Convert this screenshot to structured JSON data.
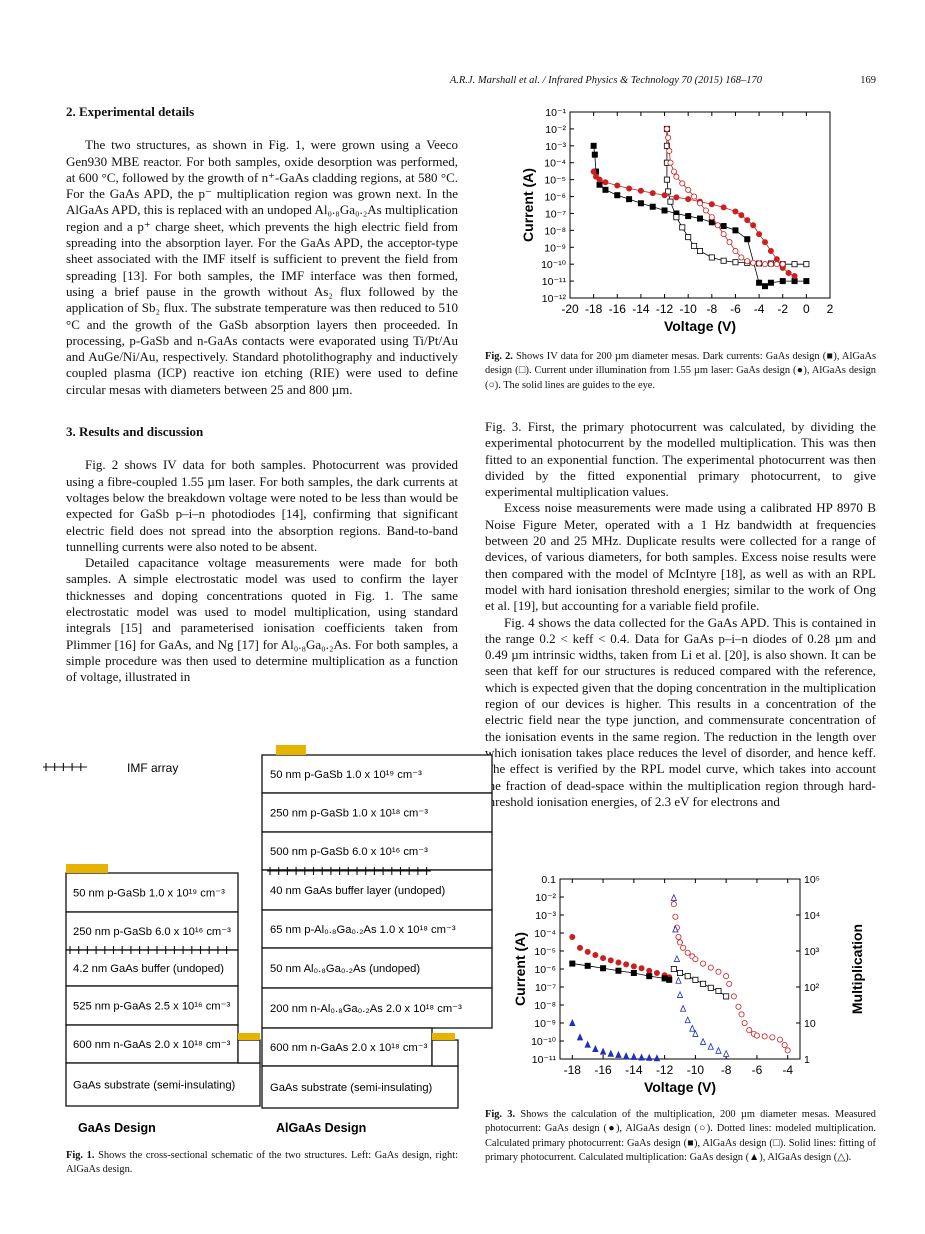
{
  "header": {
    "running": "A.R.J. Marshall et al. / Infrared Physics & Technology 70 (2015) 168–170",
    "page": "169"
  },
  "left_column": {
    "sections": [
      {
        "heading": "2. Experimental details",
        "paragraphs": [
          "The two structures, as shown in Fig. 1, were grown using a Veeco Gen930 MBE reactor. For both samples, oxide desorption was performed, at 600 °C, followed by the growth of n⁺-GaAs cladding regions, at 580 °C. For the GaAs APD, the p⁻ multiplication region was grown next. In the AlGaAs APD, this is replaced with an undoped Al₀.₈Ga₀.₂As multiplication region and a p⁺ charge sheet, which prevents the high electric field from spreading into the absorption layer. For the GaAs APD, the acceptor-type sheet associated with the IMF itself is sufficient to prevent the field from spreading [13]. For both samples, the IMF interface was then formed, using a brief pause in the growth without As₂ flux followed by the application of Sb₂ flux. The substrate temperature was then reduced to 510 °C and the growth of the GaSb absorption layers then proceeded. In processing, p-GaSb and n-GaAs contacts were evaporated using Ti/Pt/Au and AuGe/Ni/Au, respectively. Standard photolithography and inductively coupled plasma (ICP) reactive ion etching (RIE) were used to define circular mesas with diameters between 25 and 800 µm."
        ]
      },
      {
        "heading": "3. Results and discussion",
        "paragraphs": [
          "Fig. 2 shows IV data for both samples. Photocurrent was provided using a fibre-coupled 1.55 µm laser. For both samples, the dark currents at voltages below the breakdown voltage were noted to be less than would be expected for GaSb p–i–n photodiodes [14], confirming that significant electric field does not spread into the absorption regions. Band-to-band tunnelling currents were also noted to be absent.",
          "Detailed capacitance voltage measurements were made for both samples. A simple electrostatic model was used to confirm the layer thicknesses and doping concentrations quoted in Fig. 1. The same electrostatic model was used to model multiplication, using standard integrals [15] and parameterised ionisation coefficients taken from Plimmer [16] for GaAs, and Ng [17] for Al₀.₈Ga₀.₂As. For both samples, a simple procedure was then used to determine multiplication as a function of voltage, illustrated in"
        ]
      }
    ]
  },
  "right_column": {
    "paragraphs": [
      "Fig. 3. First, the primary photocurrent was calculated, by dividing the experimental photocurrent by the modelled multiplication. This was then fitted to an exponential function. The experimental photocurrent was then divided by the fitted exponential primary photocurrent, to give experimental multiplication values.",
      "Excess noise measurements were made using a calibrated HP 8970 B Noise Figure Meter, operated with a 1 Hz bandwidth at frequencies between 20 and 25 MHz. Duplicate results were collected for a range of devices, of various diameters, for both samples. Excess noise results were then compared with the model of McIntyre [18], as well as with an RPL model with hard ionisation threshold energies; similar to the work of Ong et al. [19], but accounting for a variable field profile.",
      "Fig. 4 shows the data collected for the GaAs APD. This is contained in the range 0.2 < keff < 0.4. Data for GaAs p–i–n diodes of 0.28 µm and 0.49 µm intrinsic widths, taken from Li et al. [20], is also shown. It can be seen that keff for our structures is reduced compared with the reference, which is expected given that the doping concentration in the multiplication region of our devices is higher. This results in a concentration of the electric field near the type junction, and commensurate concentration of the ionisation events in the same region. The reduction in the length over which ionisation takes place reduces the level of disorder, and hence keff. The effect is verified by the RPL model curve, which takes into account the fraction of dead-space within the multiplication region through hard-threshold ionisation energies, of 2.3 eV for electrons and"
    ]
  },
  "figure1": {
    "imf_label": "IMF array",
    "gaas_layers": [
      "50 nm p-GaSb 1.0 x 10¹⁹ cm⁻³",
      "250 nm p-GaSb 6.0 x 10¹⁶ cm⁻³",
      "4.2 nm GaAs buffer (undoped)",
      "525 nm p-GaAs 2.5 x 10¹⁶ cm⁻³",
      "600 nm n-GaAs 2.0 x 10¹⁸ cm⁻³",
      "GaAs substrate (semi-insulating)"
    ],
    "algaas_layers": [
      "50 nm p-GaSb 1.0 x 10¹⁹ cm⁻³",
      "250 nm p-GaSb 1.0 x 10¹⁸ cm⁻³",
      "500 nm p-GaSb 6.0 x 10¹⁶ cm⁻³",
      "40 nm GaAs buffer layer (undoped)",
      "65 nm p-Al₀.₈Ga₀.₂As 1.0 x 10¹⁸ cm⁻³",
      "50 nm Al₀.₈Ga₀.₂As (undoped)",
      "200 nm n-Al₀.₈Ga₀.₂As 2.0 x 10¹⁸ cm⁻³",
      "600 nm n-GaAs 2.0 x 10¹⁸ cm⁻³",
      "GaAs substrate (semi-insulating)"
    ],
    "gaas_title": "GaAs Design",
    "algaas_title": "AlGaAs Design",
    "caption": {
      "label": "Fig. 1.",
      "text": "Shows the cross-sectional schematic of the two structures. Left: GaAs design, right: AlGaAs design."
    }
  },
  "figure2": {
    "caption": {
      "label": "Fig. 2.",
      "text": "Shows IV data for 200 µm diameter mesas. Dark currents: GaAs design (■), AlGaAs design (□). Current under illumination from 1.55 µm laser: GaAs design (●), AlGaAs design (○). The solid lines are guides to the eye."
    }
  },
  "figure3": {
    "caption": {
      "label": "Fig. 3.",
      "text": "Shows the calculation of the multiplication, 200 µm diameter mesas. Measured photocurrent: GaAs design (●), AlGaAs design (○). Dotted lines: modeled multiplication. Calculated primary photocurrent: GaAs design (■), AlGaAs design (□). Solid lines: fitting of primary photocurrent. Calculated multiplication: GaAs design (▲), AlGaAs design (△)."
    }
  },
  "chart_data": [
    {
      "type": "scatter",
      "x_label": "Voltage (V)",
      "y_label": "Current (A)",
      "log_y": true,
      "xlim": [
        -20,
        2
      ],
      "xticks": [
        -20,
        -18,
        -16,
        -14,
        -12,
        -10,
        -8,
        -6,
        -4,
        -2,
        0,
        2
      ],
      "ylim": [
        1e-12,
        0.1
      ],
      "yticks": [
        {
          "value": 1e-12,
          "label": "10⁻¹²"
        },
        {
          "value": 1e-11,
          "label": "10⁻¹¹"
        },
        {
          "value": 1e-10,
          "label": "10⁻¹⁰"
        },
        {
          "value": 1e-09,
          "label": "10⁻⁹"
        },
        {
          "value": 1e-08,
          "label": "10⁻⁸"
        },
        {
          "value": 1e-07,
          "label": "10⁻⁷"
        },
        {
          "value": 1e-06,
          "label": "10⁻⁶"
        },
        {
          "value": 1e-05,
          "label": "10⁻⁵"
        },
        {
          "value": 0.0001,
          "label": "10⁻⁴"
        },
        {
          "value": 0.001,
          "label": "10⁻³"
        },
        {
          "value": 0.01,
          "label": "10⁻²"
        },
        {
          "value": 0.1,
          "label": "10⁻¹"
        }
      ],
      "series": [
        {
          "color": "#000000",
          "marker": "square",
          "filled": true,
          "line": true,
          "x": [
            -18,
            -17.9,
            -17.8,
            -17.5,
            -17,
            -16,
            -15,
            -14,
            -13,
            -12,
            -11,
            -10,
            -9,
            -8,
            -7,
            -6,
            -5,
            -4,
            -3.5,
            -3,
            -2,
            -1,
            0
          ],
          "values": [
            0.001,
            0.0003,
            3e-05,
            5e-06,
            2.5e-06,
            1.2e-06,
            7e-07,
            4e-07,
            2.5e-07,
            1.5e-07,
            1e-07,
            7e-08,
            5e-08,
            3e-08,
            1.8e-08,
            1e-08,
            3e-09,
            8e-12,
            5e-12,
            8e-12,
            1e-11,
            1e-11,
            1e-11
          ]
        },
        {
          "color": "#000000",
          "marker": "square",
          "filled": false,
          "line": true,
          "x": [
            -11.8,
            -11.8,
            -11.8,
            -11.8,
            -11.7,
            -11.5,
            -11,
            -10.5,
            -10,
            -9.5,
            -9,
            -8,
            -7,
            -6,
            -5,
            -4,
            -3,
            -2,
            -1,
            0
          ],
          "values": [
            0.01,
            0.001,
            0.0001,
            1e-05,
            2e-06,
            5e-07,
            6e-08,
            1.5e-08,
            4e-09,
            1.2e-09,
            6e-10,
            2.5e-10,
            1.6e-10,
            1.3e-10,
            1.2e-10,
            1.1e-10,
            1.1e-10,
            1e-10,
            1e-10,
            1e-10
          ]
        },
        {
          "color": "#cc1f1f",
          "marker": "circle",
          "filled": true,
          "line": true,
          "x": [
            -18,
            -17.8,
            -17.5,
            -17,
            -16,
            -15,
            -14,
            -13,
            -12,
            -11,
            -10,
            -9,
            -8,
            -7,
            -6,
            -5.5,
            -5,
            -4.5,
            -4,
            -3.5,
            -3,
            -2.5,
            -2,
            -1.5,
            -1
          ],
          "values": [
            3e-05,
            1.5e-05,
            1e-05,
            7e-06,
            4.5e-06,
            3e-06,
            2.2e-06,
            1.6e-06,
            1.2e-06,
            9e-07,
            7e-07,
            5e-07,
            3.5e-07,
            2.3e-07,
            1.3e-07,
            8e-08,
            4e-08,
            2e-08,
            6e-09,
            2e-09,
            6e-10,
            2e-10,
            6e-11,
            3e-11,
            2e-11
          ]
        },
        {
          "color": "#cc1f1f",
          "marker": "circle",
          "filled": false,
          "line": true,
          "x": [
            -11.8,
            -11.7,
            -11.6,
            -11.5,
            -11.2,
            -11,
            -10.5,
            -10,
            -9.5,
            -9,
            -8.5,
            -8,
            -7.5,
            -7,
            -6.5,
            -6,
            -5.5,
            -5,
            -4.5,
            -4,
            -3.5,
            -3,
            -2.5,
            -2
          ],
          "values": [
            0.01,
            0.003,
            0.0005,
            0.0001,
            3e-05,
            1.5e-05,
            6e-06,
            2.5e-06,
            1e-06,
            4e-07,
            1.5e-07,
            6e-08,
            2e-08,
            6e-09,
            2e-09,
            6e-10,
            2.5e-10,
            1.5e-10,
            1.2e-10,
            1.1e-10,
            1e-10,
            1e-10,
            1e-10,
            1e-10
          ]
        }
      ]
    },
    {
      "type": "scatter",
      "x_label": "Voltage (V)",
      "y_label": "Current (A)",
      "y2_label": "Multiplication",
      "log_y": true,
      "xlim": [
        -18.8,
        -3.2
      ],
      "xticks": [
        -18,
        -16,
        -14,
        -12,
        -10,
        -8,
        -6,
        -4
      ],
      "ylim": [
        1e-11,
        0.1
      ],
      "yticks": [
        {
          "value": 1e-11,
          "label": "10⁻¹¹"
        },
        {
          "value": 1e-10,
          "label": "10⁻¹⁰"
        },
        {
          "value": 1e-09,
          "label": "10⁻⁹"
        },
        {
          "value": 1e-08,
          "label": "10⁻⁸"
        },
        {
          "value": 1e-07,
          "label": "10⁻⁷"
        },
        {
          "value": 1e-06,
          "label": "10⁻⁶"
        },
        {
          "value": 1e-05,
          "label": "10⁻⁵"
        },
        {
          "value": 0.0001,
          "label": "10⁻⁴"
        },
        {
          "value": 0.001,
          "label": "10⁻³"
        },
        {
          "value": 0.01,
          "label": "10⁻²"
        },
        0.1
      ],
      "y2lim": [
        1,
        100000
      ],
      "y2ticks": [
        1,
        10,
        {
          "value": 100,
          "label": "10²"
        },
        {
          "value": 1000,
          "label": "10³"
        },
        {
          "value": 10000,
          "label": "10⁴"
        },
        {
          "value": 100000,
          "label": "10⁵"
        }
      ],
      "series": [
        {
          "color": "#cc1f1f",
          "marker": "circle",
          "filled": true,
          "line": false,
          "x": [
            -18,
            -17.5,
            -17,
            -16.5,
            -16,
            -15.5,
            -15,
            -14.5,
            -14,
            -13.5,
            -13,
            -12.5,
            -12,
            -11.7
          ],
          "values": [
            6e-05,
            1.5e-05,
            9e-06,
            6e-06,
            4e-06,
            3e-06,
            2.3e-06,
            1.8e-06,
            1.4e-06,
            1.1e-06,
            8e-07,
            6e-07,
            4.5e-07,
            3.5e-07
          ]
        },
        {
          "color": "#cc1f1f",
          "marker": "circle",
          "filled": false,
          "line": false,
          "x": [
            -11.4,
            -11.3,
            -11.2,
            -11.1,
            -11,
            -10.8,
            -10.5,
            -10.2,
            -10,
            -9.5,
            -9,
            -8.5,
            -8,
            -7.8,
            -7.5,
            -7.2,
            -7,
            -6.8,
            -6.5,
            -6.2,
            -6,
            -5.5,
            -5,
            -4.5,
            -4.2,
            -4
          ],
          "values": [
            0.004,
            0.0008,
            0.0002,
            6e-05,
            3e-05,
            1.5e-05,
            8e-06,
            5e-06,
            3.5e-06,
            2e-06,
            1.2e-06,
            7e-07,
            4e-07,
            1.5e-07,
            3e-08,
            8e-09,
            3e-09,
            1e-09,
            4e-10,
            2.5e-10,
            2e-10,
            1.8e-10,
            1.6e-10,
            1.2e-10,
            6e-11,
            3e-11
          ]
        },
        {
          "color": "#000000",
          "marker": "square",
          "filled": true,
          "line": true,
          "x": [
            -18,
            -17,
            -16,
            -15,
            -14,
            -13,
            -12,
            -11.7
          ],
          "values": [
            2e-06,
            1.5e-06,
            1.1e-06,
            8e-07,
            6e-07,
            4e-07,
            3e-07,
            2.5e-07
          ]
        },
        {
          "color": "#000000",
          "marker": "square",
          "filled": false,
          "line": true,
          "x": [
            -11.4,
            -11,
            -10.5,
            -10,
            -9.5,
            -9,
            -8.5,
            -8
          ],
          "values": [
            1e-06,
            6e-07,
            4e-07,
            2.5e-07,
            1.5e-07,
            9e-08,
            6e-08,
            3e-08
          ]
        },
        {
          "color": "#1f2fbf",
          "marker": "triangle",
          "filled": true,
          "line": false,
          "axis": "y2",
          "x": [
            -18,
            -17.5,
            -17,
            -16.5,
            -16,
            -15.5,
            -15,
            -14.5,
            -14,
            -13.5,
            -13,
            -12.5
          ],
          "values": [
            10,
            4,
            2.5,
            1.9,
            1.6,
            1.4,
            1.3,
            1.2,
            1.15,
            1.1,
            1.08,
            1.05
          ]
        },
        {
          "color": "#1f2fbf",
          "marker": "triangle",
          "filled": false,
          "line": false,
          "axis": "y2",
          "x": [
            -11.4,
            -11.3,
            -11.2,
            -11.1,
            -11,
            -10.8,
            -10.5,
            -10.2,
            -10,
            -9.5,
            -9,
            -8.5,
            -8
          ],
          "values": [
            30000,
            4000,
            600,
            150,
            60,
            25,
            12,
            7,
            5,
            3,
            2.2,
            1.7,
            1.4
          ]
        }
      ]
    }
  ]
}
